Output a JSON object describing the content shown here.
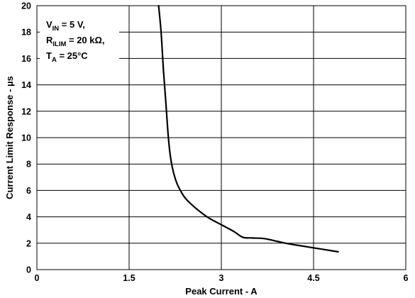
{
  "chart_data": {
    "type": "line",
    "title": "",
    "xlabel": "Peak Current - A",
    "ylabel": "Current Limit Response - µs",
    "xlim": [
      0,
      6
    ],
    "ylim": [
      0,
      20
    ],
    "x_ticks": [
      0,
      1.5,
      3,
      4.5,
      6
    ],
    "x_tick_labels": [
      "0",
      "1.5",
      "3",
      "4.5",
      "6"
    ],
    "y_ticks": [
      0,
      2,
      4,
      6,
      8,
      10,
      12,
      14,
      16,
      18,
      20
    ],
    "y_tick_labels": [
      "0",
      "2",
      "4",
      "6",
      "8",
      "10",
      "12",
      "14",
      "16",
      "18",
      "20"
    ],
    "grid": true,
    "legend": "none",
    "annotation": {
      "lines": [
        {
          "main": "V",
          "sub": "IN",
          "rest": " = 5 V,"
        },
        {
          "main": "R",
          "sub": "ILIM",
          "rest": " = 20 kΩ,"
        },
        {
          "main": "T",
          "sub": "A",
          "rest": " = 25°C"
        }
      ]
    },
    "series": [
      {
        "color": "#000000",
        "x": [
          1.98,
          2.02,
          2.06,
          2.1,
          2.13,
          2.16,
          2.2,
          2.25,
          2.3,
          2.4,
          2.5,
          2.65,
          2.8,
          3.0,
          3.2,
          3.35,
          3.5,
          3.7,
          3.9,
          4.1,
          4.3,
          4.5,
          4.7,
          4.9
        ],
        "y": [
          20,
          18,
          15,
          12.5,
          10.5,
          9.0,
          7.8,
          6.9,
          6.3,
          5.5,
          5.0,
          4.4,
          3.9,
          3.4,
          2.9,
          2.45,
          2.4,
          2.35,
          2.15,
          1.95,
          1.8,
          1.65,
          1.5,
          1.35
        ]
      }
    ]
  }
}
